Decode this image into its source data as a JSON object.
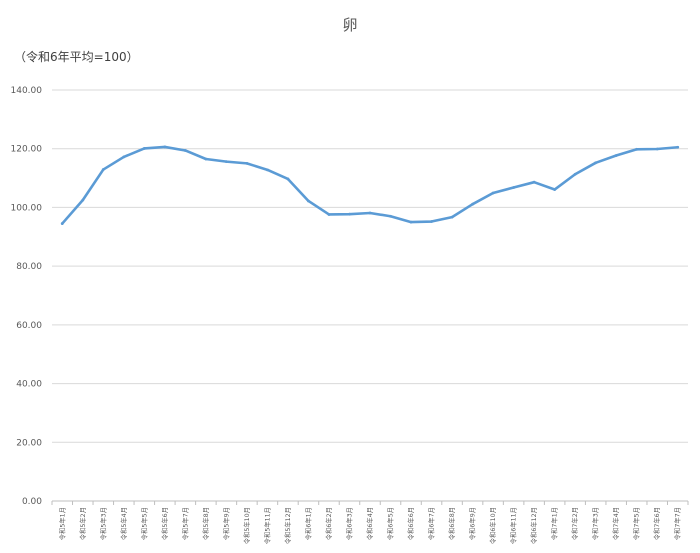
{
  "chart_data": {
    "type": "line",
    "title": "卵",
    "unit_note": "（令和6年平均=100）",
    "ylim": [
      0,
      140
    ],
    "y_ticks": [
      "0.00",
      "20.00",
      "40.00",
      "60.00",
      "80.00",
      "100.00",
      "120.00",
      "140.00"
    ],
    "grid": true,
    "legend": "none",
    "colors": {
      "line": "#5b9bd5",
      "grid": "#d9d9d9",
      "axis": "#bfbfbf"
    },
    "categories": [
      "令和5年1月",
      "令和5年2月",
      "令和5年3月",
      "令和5年4月",
      "令和5年5月",
      "令和5年6月",
      "令和5年7月",
      "令和5年8月",
      "令和5年9月",
      "令和5年10月",
      "令和5年11月",
      "令和5年12月",
      "令和6年1月",
      "令和6年2月",
      "令和6年3月",
      "令和6年4月",
      "令和6年5月",
      "令和6年6月",
      "令和6年7月",
      "令和6年8月",
      "令和6年9月",
      "令和6年10月",
      "令和6年11月",
      "令和6年12月",
      "令和7年1月",
      "令和7年2月",
      "令和7年3月",
      "令和7年4月",
      "令和7年5月",
      "令和7年6月",
      "令和7年7月"
    ],
    "series": [
      {
        "values": [
          94.5,
          102.5,
          112.9,
          117.2,
          120.1,
          120.6,
          119.4,
          116.5,
          115.6,
          115.0,
          112.8,
          109.7,
          102.2,
          97.6,
          97.7,
          98.1,
          97.0,
          95.0,
          95.2,
          96.7,
          101.1,
          104.9,
          106.8,
          108.6,
          106.1,
          111.3,
          115.2,
          117.7,
          119.8,
          119.9,
          120.5
        ]
      }
    ]
  }
}
